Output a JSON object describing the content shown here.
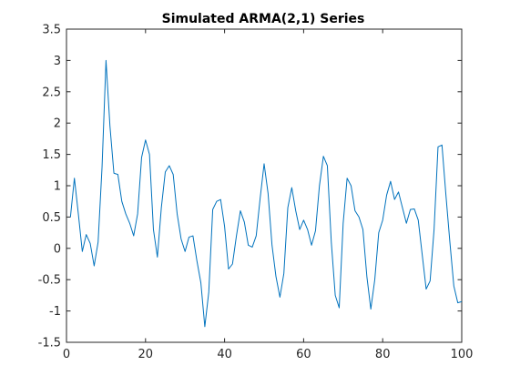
{
  "chart_data": {
    "type": "line",
    "title": "Simulated ARMA(2,1) Series",
    "xlabel": "",
    "ylabel": "",
    "xlim": [
      0,
      100
    ],
    "ylim": [
      -1.5,
      3.5
    ],
    "x_ticks": [
      0,
      20,
      40,
      60,
      80,
      100
    ],
    "x_tick_labels": [
      "0",
      "20",
      "40",
      "60",
      "80",
      "100"
    ],
    "y_ticks": [
      -1.5,
      -1,
      -0.5,
      0,
      0.5,
      1,
      1.5,
      2,
      2.5,
      3,
      3.5
    ],
    "y_tick_labels": [
      "-1.5",
      "-1",
      "-0.5",
      "0",
      "0.5",
      "1",
      "1.5",
      "2",
      "2.5",
      "3",
      "3.5"
    ],
    "grid": false,
    "line_color": "#0072BD",
    "series": [
      {
        "x": [
          1,
          2,
          3,
          4,
          5,
          6,
          7,
          8,
          9,
          10,
          11,
          12,
          13,
          14,
          15,
          16,
          17,
          18,
          19,
          20,
          21,
          22,
          23,
          24,
          25,
          26,
          27,
          28,
          29,
          30,
          31,
          32,
          33,
          34,
          35,
          36,
          37,
          38,
          39,
          40,
          41,
          42,
          43,
          44,
          45,
          46,
          47,
          48,
          49,
          50,
          51,
          52,
          53,
          54,
          55,
          56,
          57,
          58,
          59,
          60,
          61,
          62,
          63,
          64,
          65,
          66,
          67,
          68,
          69,
          70,
          71,
          72,
          73,
          74,
          75,
          76,
          77,
          78,
          79,
          80,
          81,
          82,
          83,
          84,
          85,
          86,
          87,
          88,
          89,
          90,
          91,
          92,
          93,
          94,
          95,
          96,
          97,
          98,
          99,
          100
        ],
        "values": [
          0.5,
          1.12,
          0.55,
          -0.05,
          0.22,
          0.08,
          -0.28,
          0.1,
          1.3,
          3.0,
          1.95,
          1.2,
          1.18,
          0.75,
          0.55,
          0.4,
          0.2,
          0.55,
          1.45,
          1.73,
          1.5,
          0.3,
          -0.14,
          0.65,
          1.22,
          1.32,
          1.18,
          0.55,
          0.15,
          -0.05,
          0.18,
          0.2,
          -0.2,
          -0.55,
          -1.25,
          -0.7,
          0.62,
          0.75,
          0.78,
          0.35,
          -0.33,
          -0.25,
          0.2,
          0.6,
          0.42,
          0.05,
          0.02,
          0.2,
          0.8,
          1.35,
          0.88,
          0.05,
          -0.45,
          -0.78,
          -0.4,
          0.65,
          0.97,
          0.6,
          0.3,
          0.45,
          0.3,
          0.05,
          0.28,
          1.0,
          1.47,
          1.32,
          0.1,
          -0.75,
          -0.95,
          0.4,
          1.12,
          1.0,
          0.6,
          0.5,
          0.3,
          -0.45,
          -0.97,
          -0.5,
          0.25,
          0.45,
          0.85,
          1.07,
          0.78,
          0.9,
          0.65,
          0.4,
          0.62,
          0.63,
          0.45,
          -0.1,
          -0.65,
          -0.52,
          0.3,
          1.62,
          1.65,
          0.85,
          0.1,
          -0.6,
          -0.87,
          -0.85
        ]
      }
    ]
  }
}
